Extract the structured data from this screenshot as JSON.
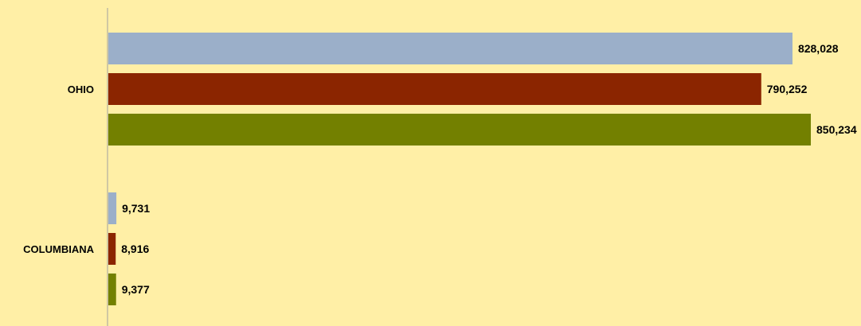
{
  "chart_data": {
    "type": "bar",
    "orientation": "horizontal",
    "categories": [
      "OHIO",
      "COLUMBIANA"
    ],
    "series": [
      {
        "color": "#9BAFC9",
        "values": [
          828028,
          790252
        ]
      },
      {
        "color": "#8B2500",
        "values": [
          9731,
          8916
        ]
      }
    ],
    "series_ohio_colors": [
      "#9BAFC9",
      "#8B2500",
      "#738000"
    ],
    "groups": [
      {
        "category": "OHIO",
        "values": [
          828028,
          790252,
          850234
        ],
        "labels": [
          "828,028",
          "790,252",
          "850,234"
        ]
      },
      {
        "category": "COLUMBIANA",
        "values": [
          9731,
          8916,
          9377
        ],
        "labels": [
          "9,731",
          "8,916",
          "9,377"
        ]
      }
    ],
    "bar_colors": [
      "#9BAFC9",
      "#8B2500",
      "#738000"
    ],
    "xlim": [
      0,
      850234
    ],
    "grid": false,
    "legend": "none",
    "title": "",
    "xlabel": "",
    "ylabel": ""
  },
  "colors": {
    "background": "#FFEFA6",
    "axis": "#A0A0A0"
  }
}
